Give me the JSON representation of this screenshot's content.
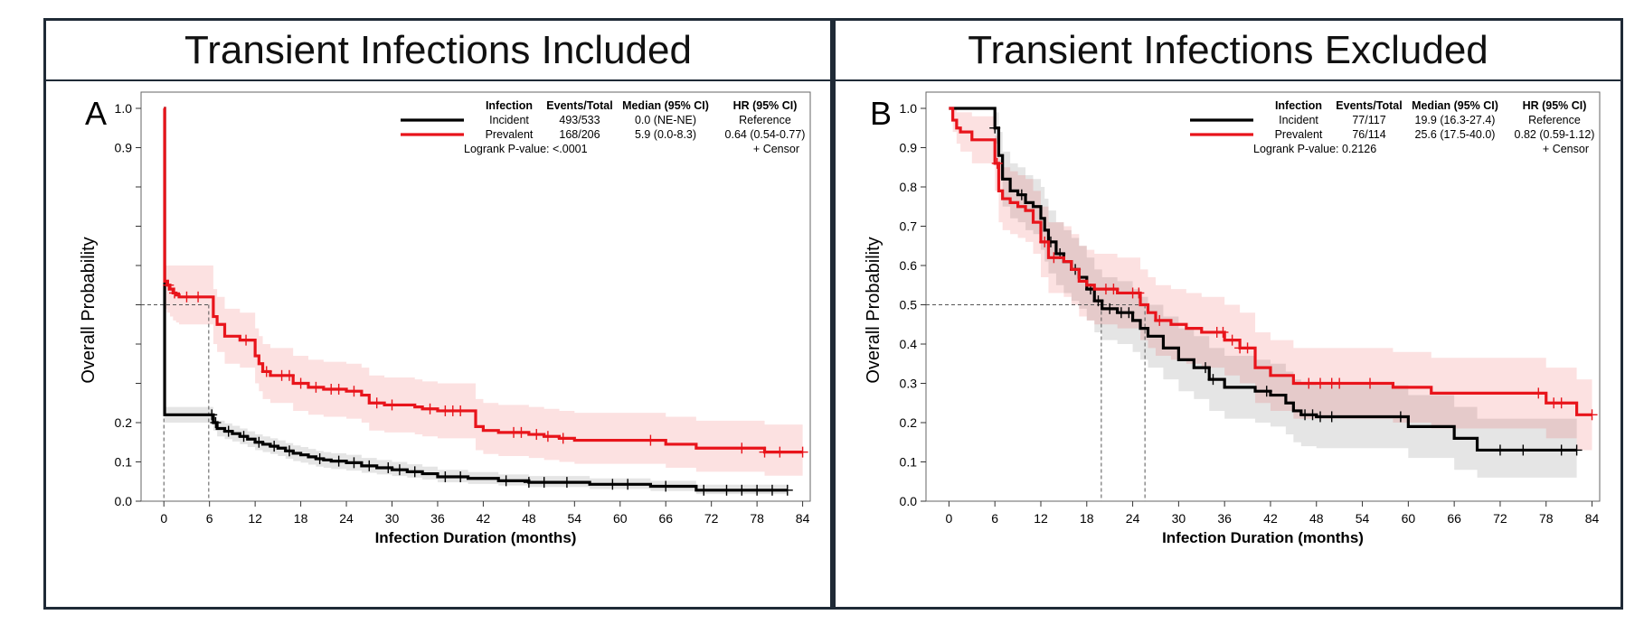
{
  "chart_data": [
    {
      "type": "line",
      "panel_letter": "A",
      "title": "Transient Infections Included",
      "xlabel": "Infection Duration (months)",
      "ylabel": "Overall Probability",
      "xlim": [
        -3,
        85
      ],
      "ylim": [
        0,
        1.0
      ],
      "x_ticks": [
        "0",
        "6",
        "12",
        "18",
        "24",
        "30",
        "36",
        "42",
        "48",
        "54",
        "60",
        "66",
        "72",
        "78",
        "84"
      ],
      "y_ticks": [
        "0.0",
        "0.1",
        "0.2",
        "0.9",
        "1.0"
      ],
      "y_tick_values": [
        0.0,
        0.1,
        0.2,
        0.9,
        1.0
      ],
      "y_minor_ticks": [
        0.3,
        0.4,
        0.5,
        0.6,
        0.7,
        0.8
      ],
      "legend": {
        "headers": [
          "Infection",
          "Events/Total",
          "Median (95% CI)",
          "HR (95% CI)"
        ],
        "rows": [
          {
            "infection": "Incident",
            "events_total": "493/533",
            "median": "0.0 (NE-NE)",
            "hr": "Reference",
            "color": "#000000"
          },
          {
            "infection": "Prevalent",
            "events_total": "168/206",
            "median": "5.9 (0.0-8.3)",
            "hr": "0.64 (0.54-0.77)",
            "color": "#e8141b"
          }
        ],
        "logrank": "Logrank P-value: <.0001",
        "censor": "+ Censor"
      },
      "median_lines": [
        0.0,
        5.9
      ],
      "series": [
        {
          "name": "Incident",
          "color": "#000000",
          "x": [
            0,
            0.1,
            6,
            6.5,
            7,
            8,
            9,
            10,
            11,
            12,
            13,
            14,
            15,
            16,
            17,
            18,
            19,
            20,
            21,
            22,
            24,
            26,
            28,
            30,
            32,
            34,
            36,
            40,
            44,
            48,
            56,
            64,
            70,
            82
          ],
          "y": [
            1.0,
            0.22,
            0.22,
            0.2,
            0.185,
            0.178,
            0.172,
            0.165,
            0.158,
            0.15,
            0.145,
            0.14,
            0.135,
            0.128,
            0.122,
            0.118,
            0.113,
            0.108,
            0.105,
            0.102,
            0.098,
            0.09,
            0.085,
            0.08,
            0.075,
            0.07,
            0.062,
            0.058,
            0.052,
            0.048,
            0.043,
            0.038,
            0.028,
            0.028
          ],
          "ci_lower": [
            1.0,
            0.2,
            0.2,
            0.18,
            0.165,
            0.158,
            0.152,
            0.145,
            0.138,
            0.13,
            0.125,
            0.12,
            0.115,
            0.108,
            0.102,
            0.098,
            0.093,
            0.088,
            0.085,
            0.082,
            0.078,
            0.072,
            0.068,
            0.064,
            0.06,
            0.055,
            0.048,
            0.044,
            0.04,
            0.036,
            0.031,
            0.026,
            0.018,
            0.018
          ],
          "ci_upper": [
            1.0,
            0.24,
            0.24,
            0.22,
            0.205,
            0.198,
            0.192,
            0.185,
            0.178,
            0.17,
            0.165,
            0.16,
            0.155,
            0.148,
            0.142,
            0.138,
            0.133,
            0.128,
            0.125,
            0.122,
            0.118,
            0.11,
            0.105,
            0.1,
            0.094,
            0.088,
            0.08,
            0.074,
            0.068,
            0.064,
            0.058,
            0.052,
            0.042,
            0.042
          ],
          "censor_x": [
            6.3,
            6.8,
            8.5,
            10.5,
            12.5,
            14.5,
            16.5,
            20.5,
            23,
            25,
            27,
            29.5,
            31,
            33,
            37,
            39,
            45,
            48,
            50,
            53,
            59,
            61,
            66,
            71,
            74,
            76,
            78,
            80,
            82
          ]
        },
        {
          "name": "Prevalent",
          "color": "#e8141b",
          "x": [
            0,
            0.1,
            0.4,
            0.8,
            1.2,
            1.6,
            2,
            5.9,
            6.5,
            7,
            8,
            10,
            12,
            12.5,
            13,
            14,
            17,
            19,
            21,
            24,
            26,
            27,
            29,
            33,
            34,
            36,
            41,
            42,
            44,
            48,
            50,
            52,
            54,
            66,
            70,
            79,
            84
          ],
          "y": [
            1.0,
            0.56,
            0.55,
            0.54,
            0.53,
            0.525,
            0.52,
            0.52,
            0.47,
            0.45,
            0.42,
            0.41,
            0.37,
            0.35,
            0.33,
            0.32,
            0.3,
            0.29,
            0.285,
            0.28,
            0.27,
            0.25,
            0.245,
            0.24,
            0.235,
            0.23,
            0.19,
            0.18,
            0.175,
            0.17,
            0.165,
            0.16,
            0.155,
            0.145,
            0.135,
            0.125,
            0.125
          ],
          "ci_lower": [
            1.0,
            0.49,
            0.48,
            0.47,
            0.46,
            0.455,
            0.45,
            0.45,
            0.4,
            0.38,
            0.35,
            0.34,
            0.3,
            0.28,
            0.26,
            0.25,
            0.23,
            0.22,
            0.215,
            0.21,
            0.2,
            0.18,
            0.175,
            0.17,
            0.165,
            0.16,
            0.13,
            0.12,
            0.115,
            0.11,
            0.105,
            0.1,
            0.095,
            0.085,
            0.075,
            0.065,
            0.065
          ],
          "ci_upper": [
            1.0,
            0.6,
            0.6,
            0.6,
            0.6,
            0.6,
            0.6,
            0.6,
            0.54,
            0.52,
            0.49,
            0.48,
            0.44,
            0.42,
            0.4,
            0.39,
            0.37,
            0.36,
            0.355,
            0.35,
            0.34,
            0.32,
            0.315,
            0.31,
            0.305,
            0.3,
            0.26,
            0.25,
            0.245,
            0.24,
            0.235,
            0.23,
            0.225,
            0.215,
            0.205,
            0.195,
            0.195
          ],
          "censor_x": [
            0.6,
            1.4,
            3,
            4.5,
            10.8,
            13.5,
            15.5,
            16.5,
            18,
            20,
            22,
            23,
            25,
            28,
            30,
            35,
            37,
            38,
            39,
            46,
            47,
            49,
            50.5,
            52.5,
            64,
            76,
            79,
            81,
            84
          ]
        }
      ]
    },
    {
      "type": "line",
      "panel_letter": "B",
      "title": "Transient Infections Excluded",
      "xlabel": "Infection Duration (months)",
      "ylabel": "Overall Probability",
      "xlim": [
        -3,
        85
      ],
      "ylim": [
        0,
        1.0
      ],
      "x_ticks": [
        "0",
        "6",
        "12",
        "18",
        "24",
        "30",
        "36",
        "42",
        "48",
        "54",
        "60",
        "66",
        "72",
        "78",
        "84"
      ],
      "y_ticks": [
        "0.0",
        "0.1",
        "0.2",
        "0.3",
        "0.4",
        "0.5",
        "0.6",
        "0.7",
        "0.8",
        "0.9",
        "1.0"
      ],
      "y_tick_values": [
        0.0,
        0.1,
        0.2,
        0.3,
        0.4,
        0.5,
        0.6,
        0.7,
        0.8,
        0.9,
        1.0
      ],
      "y_minor_ticks": [],
      "legend": {
        "headers": [
          "Infection",
          "Events/Total",
          "Median (95% CI)",
          "HR (95% CI)"
        ],
        "rows": [
          {
            "infection": "Incident",
            "events_total": "77/117",
            "median": "19.9 (16.3-27.4)",
            "hr": "Reference",
            "color": "#000000"
          },
          {
            "infection": "Prevalent",
            "events_total": "76/114",
            "median": "25.6 (17.5-40.0)",
            "hr": "0.82 (0.59-1.12)",
            "color": "#e8141b"
          }
        ],
        "logrank": "Logrank P-value: 0.2126",
        "censor": "+ Censor"
      },
      "median_lines": [
        19.9,
        25.6
      ],
      "series": [
        {
          "name": "Incident",
          "color": "#000000",
          "x": [
            0,
            5.5,
            6,
            6.5,
            7,
            8,
            9,
            10,
            11,
            12,
            12.5,
            13,
            14,
            15,
            16,
            17,
            18,
            19,
            20,
            22,
            24,
            25,
            26,
            28,
            30,
            32,
            34,
            36,
            40,
            42,
            44,
            45,
            46,
            48,
            58,
            60,
            62,
            66,
            69,
            82
          ],
          "y": [
            1.0,
            1.0,
            0.95,
            0.88,
            0.82,
            0.79,
            0.78,
            0.76,
            0.75,
            0.72,
            0.69,
            0.66,
            0.63,
            0.61,
            0.59,
            0.57,
            0.54,
            0.51,
            0.49,
            0.48,
            0.46,
            0.44,
            0.42,
            0.39,
            0.36,
            0.34,
            0.31,
            0.29,
            0.28,
            0.27,
            0.25,
            0.23,
            0.22,
            0.215,
            0.215,
            0.19,
            0.19,
            0.16,
            0.13,
            0.13
          ],
          "ci_lower": [
            1.0,
            1.0,
            0.91,
            0.82,
            0.75,
            0.72,
            0.71,
            0.69,
            0.68,
            0.64,
            0.61,
            0.58,
            0.55,
            0.53,
            0.51,
            0.49,
            0.46,
            0.43,
            0.41,
            0.4,
            0.38,
            0.36,
            0.34,
            0.31,
            0.28,
            0.26,
            0.23,
            0.21,
            0.2,
            0.19,
            0.17,
            0.15,
            0.14,
            0.135,
            0.135,
            0.11,
            0.11,
            0.08,
            0.06,
            0.06
          ],
          "ci_upper": [
            1.0,
            1.0,
            0.99,
            0.94,
            0.89,
            0.86,
            0.85,
            0.83,
            0.82,
            0.8,
            0.77,
            0.74,
            0.71,
            0.69,
            0.67,
            0.65,
            0.62,
            0.59,
            0.57,
            0.56,
            0.54,
            0.52,
            0.5,
            0.47,
            0.44,
            0.42,
            0.39,
            0.37,
            0.36,
            0.35,
            0.33,
            0.31,
            0.3,
            0.295,
            0.295,
            0.27,
            0.27,
            0.24,
            0.21,
            0.21
          ],
          "censor_x": [
            6,
            9.5,
            13.3,
            14.5,
            16.5,
            18.5,
            19.5,
            21,
            22.5,
            23.5,
            33.5,
            34.5,
            41.5,
            46.5,
            47.5,
            48.5,
            50,
            59,
            72,
            75,
            80,
            82
          ]
        },
        {
          "name": "Prevalent",
          "color": "#e8141b",
          "x": [
            0,
            0.5,
            1,
            1.5,
            3,
            4.5,
            5.5,
            6,
            6.5,
            7,
            8,
            9,
            10,
            11,
            12,
            13,
            14,
            15,
            16,
            17,
            18,
            19,
            20,
            22,
            25,
            26,
            27,
            29,
            31,
            33,
            36,
            38,
            40,
            42,
            45,
            58,
            63,
            78,
            82,
            84
          ],
          "y": [
            1.0,
            0.97,
            0.95,
            0.94,
            0.92,
            0.92,
            0.92,
            0.86,
            0.79,
            0.77,
            0.76,
            0.75,
            0.74,
            0.71,
            0.66,
            0.62,
            0.62,
            0.61,
            0.59,
            0.56,
            0.55,
            0.54,
            0.54,
            0.53,
            0.5,
            0.48,
            0.46,
            0.45,
            0.44,
            0.43,
            0.41,
            0.39,
            0.34,
            0.32,
            0.3,
            0.29,
            0.275,
            0.25,
            0.22,
            0.22
          ],
          "ci_lower": [
            1.0,
            0.94,
            0.91,
            0.89,
            0.86,
            0.86,
            0.86,
            0.79,
            0.71,
            0.69,
            0.68,
            0.67,
            0.66,
            0.63,
            0.57,
            0.53,
            0.53,
            0.52,
            0.5,
            0.47,
            0.46,
            0.45,
            0.45,
            0.44,
            0.41,
            0.39,
            0.37,
            0.36,
            0.35,
            0.34,
            0.32,
            0.3,
            0.25,
            0.23,
            0.21,
            0.2,
            0.185,
            0.16,
            0.13,
            0.13
          ],
          "ci_upper": [
            1.0,
            1.0,
            0.99,
            0.99,
            0.98,
            0.98,
            0.98,
            0.93,
            0.87,
            0.85,
            0.84,
            0.83,
            0.82,
            0.79,
            0.75,
            0.71,
            0.71,
            0.7,
            0.68,
            0.65,
            0.64,
            0.63,
            0.63,
            0.62,
            0.59,
            0.57,
            0.55,
            0.54,
            0.53,
            0.52,
            0.5,
            0.48,
            0.43,
            0.41,
            0.39,
            0.38,
            0.365,
            0.34,
            0.31,
            0.31
          ],
          "censor_x": [
            6.3,
            12.5,
            13.7,
            20.5,
            21.5,
            24,
            24.8,
            27.5,
            35,
            35.8,
            37,
            38,
            39,
            47,
            48.5,
            50,
            51,
            55,
            77,
            79,
            80,
            84
          ]
        }
      ]
    }
  ]
}
